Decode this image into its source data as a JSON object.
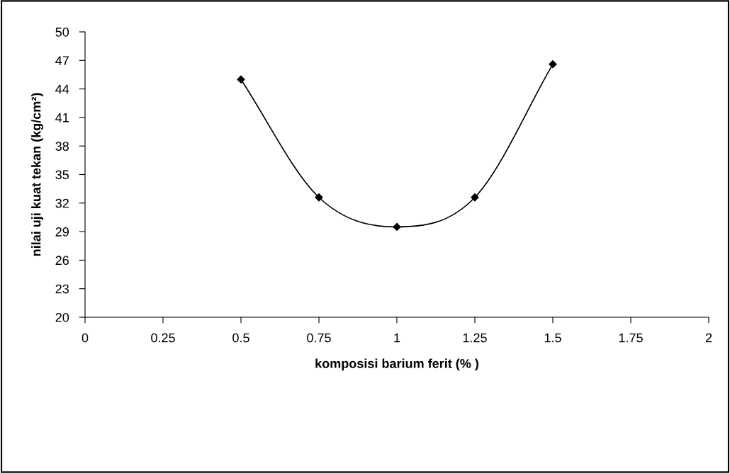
{
  "chart_data": {
    "type": "line",
    "xlabel": "komposisi barium ferit (% )",
    "ylabel": "nilai uji kuat tekan (kg/cm²)",
    "x": [
      0.5,
      0.75,
      1,
      1.25,
      1.5
    ],
    "series": [
      {
        "color": "#000000",
        "values": [
          45,
          32.6,
          29.5,
          32.6,
          46.6
        ]
      }
    ],
    "marker": "diamond",
    "line_style": "solid",
    "grid": false,
    "legend": false,
    "xlim": [
      0,
      2
    ],
    "xticks": [
      0,
      0.25,
      0.5,
      0.75,
      1,
      1.25,
      1.5,
      1.75,
      2
    ],
    "ylim": [
      20,
      50
    ],
    "yticks": [
      20,
      23,
      26,
      29,
      32,
      35,
      38,
      41,
      44,
      47,
      50
    ]
  }
}
